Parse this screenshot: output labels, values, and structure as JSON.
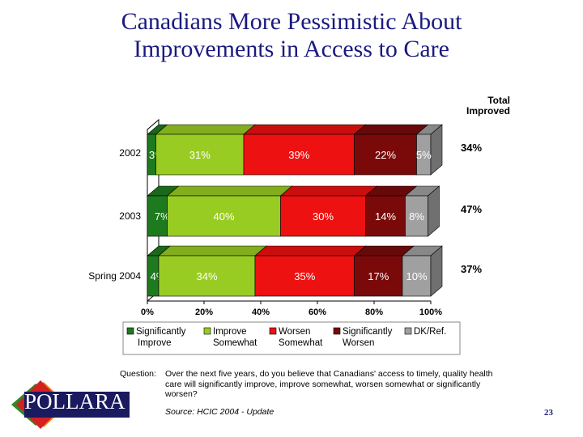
{
  "title_line1": "Canadians More Pessimistic About",
  "title_line2": "Improvements in Access to Care",
  "total_header_line1": "Total",
  "total_header_line2": "Improved",
  "question_label": "Question:",
  "question_text": "Over the next five years, do you believe that Canadians' access to timely, quality health care will significantly improve, improve somewhat, worsen somewhat or significantly worsen?",
  "source": "Source:  HCIC 2004 - Update",
  "page_number": "23",
  "logo_text": "POLLARA",
  "colors": {
    "significantly_improve": "#1e7a1e",
    "improve_somewhat": "#99cc22",
    "worsen_somewhat": "#ee1111",
    "significantly_worsen": "#7a0a0a",
    "dk_ref": "#a0a0a0",
    "logo_red": "#d42020",
    "logo_green": "#2a8a2a",
    "logo_orange": "#e88a10",
    "logo_navy": "#1a1a60"
  },
  "chart_data": {
    "type": "bar",
    "orientation": "horizontal",
    "stacked": true,
    "categories": [
      "2002",
      "2003",
      "Spring 2004"
    ],
    "series": [
      {
        "name": "Significantly Improve",
        "legend_lines": [
          "Significantly",
          "Improve"
        ],
        "values": [
          3,
          7,
          4
        ],
        "labels": [
          "3%",
          "7%",
          "4%"
        ]
      },
      {
        "name": "Improve Somewhat",
        "legend_lines": [
          "Improve",
          "Somewhat"
        ],
        "values": [
          31,
          40,
          34
        ],
        "labels": [
          "31%",
          "40%",
          "34%"
        ]
      },
      {
        "name": "Worsen Somewhat",
        "legend_lines": [
          "Worsen",
          "Somewhat"
        ],
        "values": [
          39,
          30,
          35
        ],
        "labels": [
          "39%",
          "30%",
          "35%"
        ]
      },
      {
        "name": "Significantly Worsen",
        "legend_lines": [
          "Significantly",
          "Worsen"
        ],
        "values": [
          22,
          14,
          17
        ],
        "labels": [
          "22%",
          "14%",
          "17%"
        ]
      },
      {
        "name": "DK/Ref.",
        "legend_lines": [
          "DK/Ref.",
          ""
        ],
        "values": [
          5,
          8,
          10
        ],
        "labels": [
          "5%",
          "8%",
          "10%"
        ]
      }
    ],
    "total_improved": [
      "34%",
      "47%",
      "37%"
    ],
    "xlim": [
      0,
      100
    ],
    "xticks": [
      "0%",
      "20%",
      "40%",
      "60%",
      "80%",
      "100%"
    ],
    "legend_position": "bottom",
    "grid": false
  }
}
